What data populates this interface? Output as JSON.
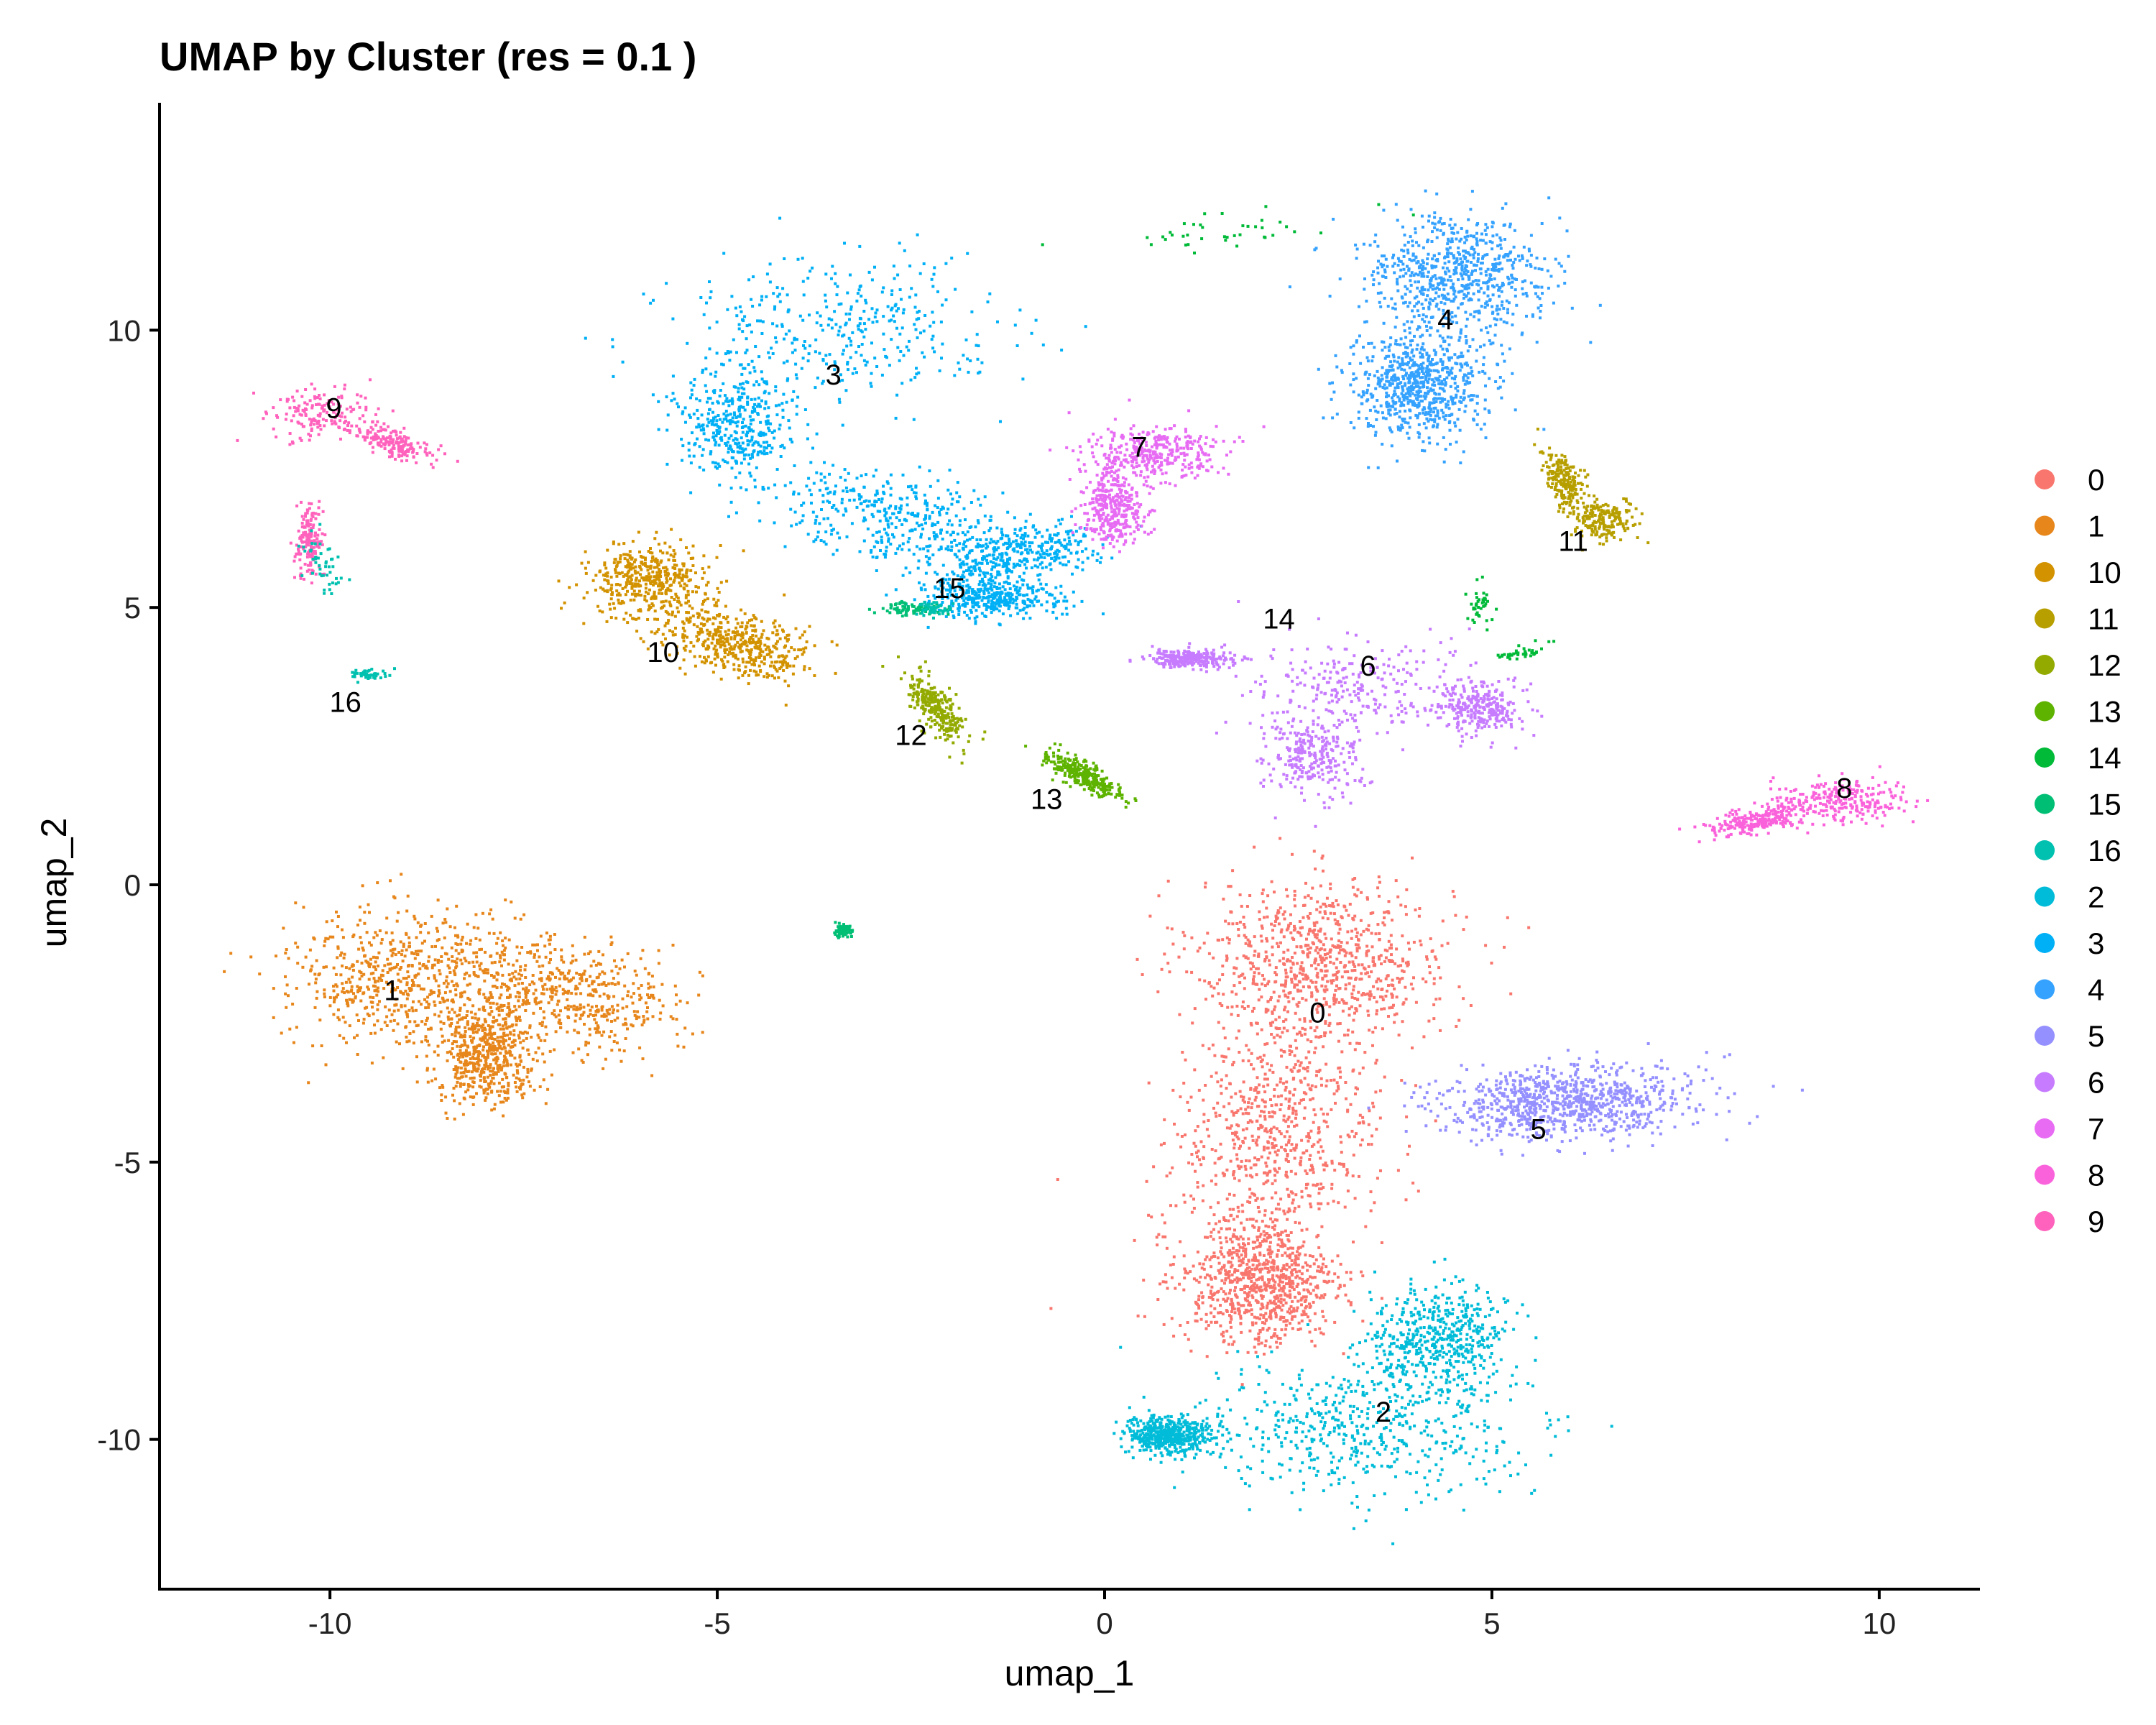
{
  "chart_data": {
    "type": "scatter",
    "title": "UMAP by Cluster (res = 0.1 )",
    "xlabel": "umap_1",
    "ylabel": "umap_2",
    "xlim": [
      -12.2,
      11.3
    ],
    "ylim": [
      -12.7,
      14.1
    ],
    "xticks": [
      -10,
      -5,
      0,
      5,
      10
    ],
    "xtick_labels": [
      "-10",
      "-5",
      "0",
      "5",
      "10"
    ],
    "yticks": [
      -10,
      -5,
      0,
      5,
      10
    ],
    "ytick_labels": [
      "-10",
      "-5",
      "0",
      "5",
      "10"
    ],
    "grid": false,
    "legend_position": "right",
    "legend": [
      {
        "label": "0",
        "color": "#F8766D"
      },
      {
        "label": "1",
        "color": "#E7861B"
      },
      {
        "label": "10",
        "color": "#D39200"
      },
      {
        "label": "11",
        "color": "#B79F00"
      },
      {
        "label": "12",
        "color": "#93AA00"
      },
      {
        "label": "13",
        "color": "#5EB300"
      },
      {
        "label": "14",
        "color": "#00BA38"
      },
      {
        "label": "15",
        "color": "#00BF74"
      },
      {
        "label": "16",
        "color": "#00C0AF"
      },
      {
        "label": "2",
        "color": "#00BCD8"
      },
      {
        "label": "3",
        "color": "#00B0F6"
      },
      {
        "label": "4",
        "color": "#35A2FF"
      },
      {
        "label": "5",
        "color": "#9590FF"
      },
      {
        "label": "6",
        "color": "#C77CFF"
      },
      {
        "label": "7",
        "color": "#E76BF3"
      },
      {
        "label": "8",
        "color": "#FA62DB"
      },
      {
        "label": "9",
        "color": "#FF62BC"
      }
    ],
    "clusters": [
      {
        "label": "0",
        "x": 2.75,
        "y": -2.3
      },
      {
        "label": "1",
        "x": -9.2,
        "y": -1.9
      },
      {
        "label": "10",
        "x": -5.7,
        "y": 4.2
      },
      {
        "label": "11",
        "x": 6.05,
        "y": 6.2
      },
      {
        "label": "12",
        "x": -2.5,
        "y": 2.7
      },
      {
        "label": "13",
        "x": -0.75,
        "y": 1.55
      },
      {
        "label": "14",
        "x": 2.25,
        "y": 4.8
      },
      {
        "label": "15",
        "x": -2.0,
        "y": 5.35
      },
      {
        "label": "16",
        "x": -9.8,
        "y": 3.3
      },
      {
        "label": "2",
        "x": 3.6,
        "y": -9.5
      },
      {
        "label": "3",
        "x": -3.5,
        "y": 9.2
      },
      {
        "label": "4",
        "x": 4.4,
        "y": 10.2
      },
      {
        "label": "5",
        "x": 5.6,
        "y": -4.4
      },
      {
        "label": "6",
        "x": 3.4,
        "y": 3.95
      },
      {
        "label": "7",
        "x": 0.45,
        "y": 7.9
      },
      {
        "label": "8",
        "x": 9.55,
        "y": 1.75
      },
      {
        "label": "9",
        "x": -9.95,
        "y": 8.6
      }
    ]
  }
}
